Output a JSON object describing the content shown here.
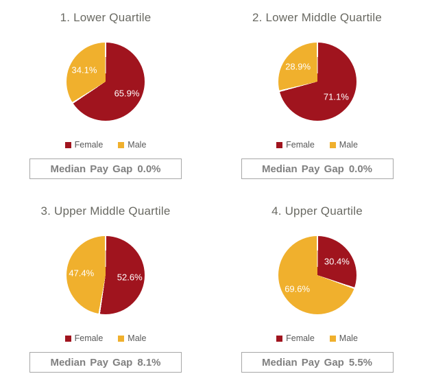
{
  "colors": {
    "female": "#A0141E",
    "male": "#F0B02D",
    "title_text": "#696962",
    "legend_text": "#595959",
    "footer_text": "#808080",
    "footer_border": "#A6A6A6",
    "slice_label_text": "#FFFFFF",
    "background": "#FFFFFF",
    "slice_separator": "#FFFFFF"
  },
  "chart_data": [
    {
      "type": "pie",
      "title": "1. Lower Quartile",
      "labels": [
        "Female",
        "Male"
      ],
      "values": [
        65.9,
        34.1
      ],
      "value_labels": [
        "65.9%",
        "34.1%"
      ],
      "colors": [
        "#A0141E",
        "#F0B02D"
      ],
      "start_angle": 0,
      "direction": "clockwise",
      "legend_position": "bottom",
      "footer_label": "Median Pay Gap",
      "footer_value": "0.0%"
    },
    {
      "type": "pie",
      "title": "2. Lower Middle Quartile",
      "labels": [
        "Female",
        "Male"
      ],
      "values": [
        71.1,
        28.9
      ],
      "value_labels": [
        "71.1%",
        "28.9%"
      ],
      "colors": [
        "#A0141E",
        "#F0B02D"
      ],
      "start_angle": 0,
      "direction": "clockwise",
      "legend_position": "bottom",
      "footer_label": "Median Pay Gap",
      "footer_value": "0.0%"
    },
    {
      "type": "pie",
      "title": "3. Upper Middle Quartile",
      "labels": [
        "Female",
        "Male"
      ],
      "values": [
        52.6,
        47.4
      ],
      "value_labels": [
        "52.6%",
        "47.4%"
      ],
      "colors": [
        "#A0141E",
        "#F0B02D"
      ],
      "start_angle": 0,
      "direction": "clockwise",
      "legend_position": "bottom",
      "footer_label": "Median Pay Gap",
      "footer_value": "8.1%"
    },
    {
      "type": "pie",
      "title": "4. Upper Quartile",
      "labels": [
        "Female",
        "Male"
      ],
      "values": [
        30.4,
        69.6
      ],
      "value_labels": [
        "30.4%",
        "69.6%"
      ],
      "colors": [
        "#A0141E",
        "#F0B02D"
      ],
      "start_angle": 0,
      "direction": "clockwise",
      "legend_position": "bottom",
      "footer_label": "Median Pay Gap",
      "footer_value": "5.5%"
    }
  ]
}
